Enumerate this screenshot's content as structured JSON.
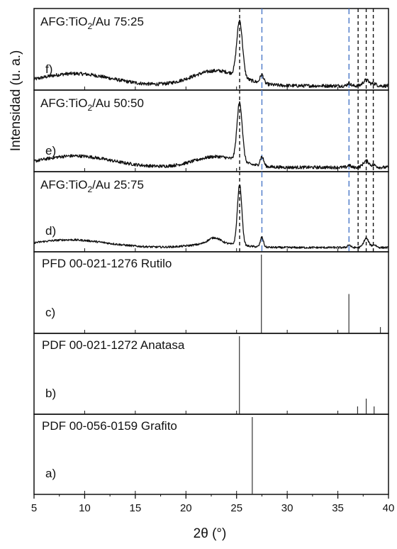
{
  "chart_data": {
    "type": "line",
    "xlabel": "2θ (°)",
    "ylabel": "Intensidad (u. a.)",
    "xlim": [
      5,
      40
    ],
    "x_ticks": [
      5,
      10,
      15,
      20,
      25,
      30,
      35,
      40
    ],
    "reference_lines": {
      "black_dashed": [
        25.3,
        37.0,
        37.8,
        38.5
      ],
      "blue_dashed": [
        27.5,
        36.1
      ],
      "black_color": "#111111",
      "blue_color": "#4a78c8"
    },
    "panels": [
      {
        "id": "f",
        "label_prefix": "AFG:TiO",
        "label_sub": "2",
        "label_suffix": "/Au 75:25",
        "letter": "f)",
        "kind": "pattern",
        "noise": 0.024,
        "baseline": 0.02,
        "components": [
          {
            "center": 9.0,
            "width": 3.6,
            "height": 0.17
          },
          {
            "center": 23.0,
            "width": 2.4,
            "height": 0.21
          },
          {
            "center": 25.3,
            "width": 0.28,
            "height": 0.78
          },
          {
            "center": 27.5,
            "width": 0.18,
            "height": 0.12
          },
          {
            "center": 36.1,
            "width": 0.15,
            "height": 0.04
          },
          {
            "center": 37.8,
            "width": 0.3,
            "height": 0.08
          },
          {
            "center": 38.6,
            "width": 0.2,
            "height": 0.03
          }
        ]
      },
      {
        "id": "e",
        "label_prefix": "AFG:TiO",
        "label_sub": "2",
        "label_suffix": "/Au 50:50",
        "letter": "e)",
        "kind": "pattern",
        "noise": 0.022,
        "baseline": 0.02,
        "components": [
          {
            "center": 9.0,
            "width": 3.6,
            "height": 0.16
          },
          {
            "center": 23.0,
            "width": 2.2,
            "height": 0.15
          },
          {
            "center": 25.3,
            "width": 0.26,
            "height": 0.82
          },
          {
            "center": 27.5,
            "width": 0.18,
            "height": 0.13
          },
          {
            "center": 36.1,
            "width": 0.15,
            "height": 0.03
          },
          {
            "center": 37.8,
            "width": 0.3,
            "height": 0.09
          },
          {
            "center": 38.6,
            "width": 0.2,
            "height": 0.03
          }
        ]
      },
      {
        "id": "d",
        "label_prefix": "AFG:TiO",
        "label_sub": "2",
        "label_suffix": "/Au 25:75",
        "letter": "d)",
        "kind": "pattern",
        "noise": 0.014,
        "baseline": 0.02,
        "components": [
          {
            "center": 8.5,
            "width": 3.6,
            "height": 0.11
          },
          {
            "center": 22.8,
            "width": 0.6,
            "height": 0.08
          },
          {
            "center": 23.0,
            "width": 2.2,
            "height": 0.06
          },
          {
            "center": 25.3,
            "width": 0.22,
            "height": 0.86
          },
          {
            "center": 27.5,
            "width": 0.15,
            "height": 0.14
          },
          {
            "center": 36.1,
            "width": 0.15,
            "height": 0.04
          },
          {
            "center": 37.8,
            "width": 0.25,
            "height": 0.13
          },
          {
            "center": 38.6,
            "width": 0.2,
            "height": 0.04
          }
        ]
      },
      {
        "id": "c",
        "label": "PFD 00-021-1276 Rutilo",
        "letter": "c)",
        "kind": "sticks",
        "sticks": [
          {
            "x": 27.45,
            "y": 1.0
          },
          {
            "x": 36.09,
            "y": 0.5
          },
          {
            "x": 39.2,
            "y": 0.08
          }
        ]
      },
      {
        "id": "b",
        "label": "PDF 00-021-1272 Anatasa",
        "letter": "b)",
        "kind": "sticks",
        "sticks": [
          {
            "x": 25.28,
            "y": 1.0
          },
          {
            "x": 36.95,
            "y": 0.1
          },
          {
            "x": 37.8,
            "y": 0.2
          },
          {
            "x": 38.58,
            "y": 0.1
          }
        ]
      },
      {
        "id": "a",
        "label": "PDF 00-056-0159 Grafito",
        "letter": "a)",
        "kind": "sticks",
        "sticks": [
          {
            "x": 26.55,
            "y": 1.0
          }
        ]
      }
    ]
  }
}
